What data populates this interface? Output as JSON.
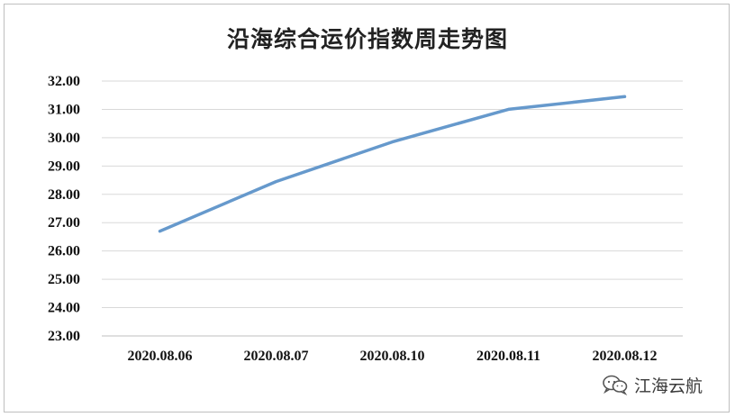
{
  "chart_data": {
    "type": "line",
    "title": "沿海综合运价指数周走势图",
    "categories": [
      "2020.08.06",
      "2020.08.07",
      "2020.08.10",
      "2020.08.11",
      "2020.08.12"
    ],
    "series": [
      {
        "values": [
          26.7,
          28.45,
          29.85,
          31.0,
          31.45
        ]
      }
    ],
    "ylim": [
      23.0,
      32.0
    ],
    "yticks": [
      "23.00",
      "24.00",
      "25.00",
      "26.00",
      "27.00",
      "28.00",
      "29.00",
      "30.00",
      "31.00",
      "32.00"
    ],
    "grid": true,
    "line_color": "#6699cc",
    "grid_color": "#d9d9d9"
  },
  "watermark": {
    "text": "江海云航",
    "icon": "wechat-icon"
  }
}
